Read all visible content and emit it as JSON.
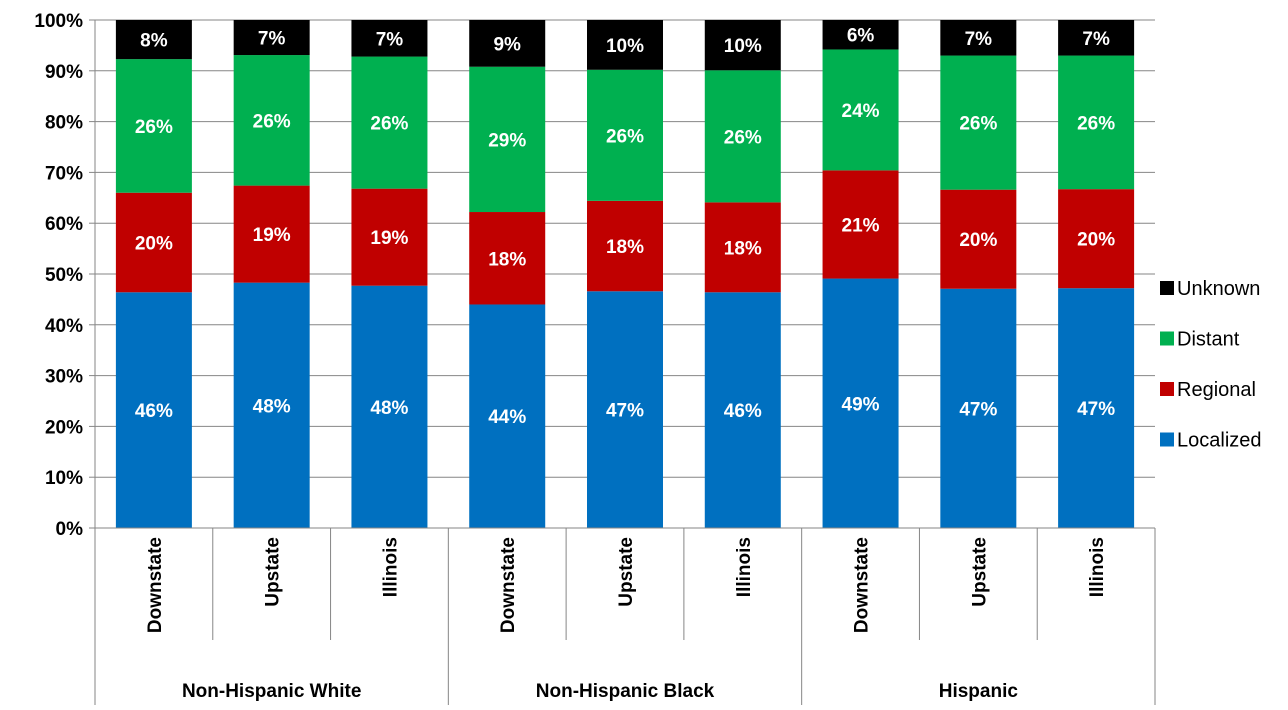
{
  "chart_data": {
    "type": "bar",
    "stacked": true,
    "ylim": [
      0,
      100
    ],
    "yticks": [
      "0%",
      "10%",
      "20%",
      "30%",
      "40%",
      "50%",
      "60%",
      "70%",
      "80%",
      "90%",
      "100%"
    ],
    "categories": [
      "Downstate",
      "Upstate",
      "Illinois",
      "Downstate",
      "Upstate",
      "Illinois",
      "Downstate",
      "Upstate",
      "Illinois"
    ],
    "groups": [
      {
        "label": "Non-Hispanic White",
        "start": 0,
        "count": 3
      },
      {
        "label": "Non-Hispanic Black",
        "start": 3,
        "count": 3
      },
      {
        "label": "Hispanic",
        "start": 6,
        "count": 3
      }
    ],
    "series": [
      {
        "name": "Localized",
        "color": "#0070C0",
        "values": [
          46.4,
          48.3,
          47.7,
          44.0,
          46.6,
          46.4,
          49.1,
          47.1,
          47.2
        ],
        "labels": [
          "46%",
          "48%",
          "48%",
          "44%",
          "47%",
          "46%",
          "49%",
          "47%",
          "47%"
        ]
      },
      {
        "name": "Regional",
        "color": "#C00000",
        "values": [
          19.6,
          19.1,
          19.1,
          18.2,
          17.8,
          17.7,
          21.3,
          19.5,
          19.5
        ],
        "labels": [
          "20%",
          "19%",
          "19%",
          "18%",
          "18%",
          "18%",
          "21%",
          "20%",
          "20%"
        ]
      },
      {
        "name": "Distant",
        "color": "#00B050",
        "values": [
          26.3,
          25.7,
          26.0,
          28.6,
          25.8,
          26.0,
          23.8,
          26.4,
          26.3
        ],
        "labels": [
          "26%",
          "26%",
          "26%",
          "29%",
          "26%",
          "26%",
          "24%",
          "26%",
          "26%"
        ]
      },
      {
        "name": "Unknown",
        "color": "#000000",
        "values": [
          7.7,
          6.9,
          7.2,
          9.2,
          9.8,
          9.9,
          5.8,
          7.0,
          7.0
        ],
        "labels": [
          "8%",
          "7%",
          "7%",
          "9%",
          "10%",
          "10%",
          "6%",
          "7%",
          "7%"
        ]
      }
    ],
    "legend_order": [
      "Unknown",
      "Distant",
      "Regional",
      "Localized"
    ],
    "legend_position": "right",
    "grid": true
  }
}
